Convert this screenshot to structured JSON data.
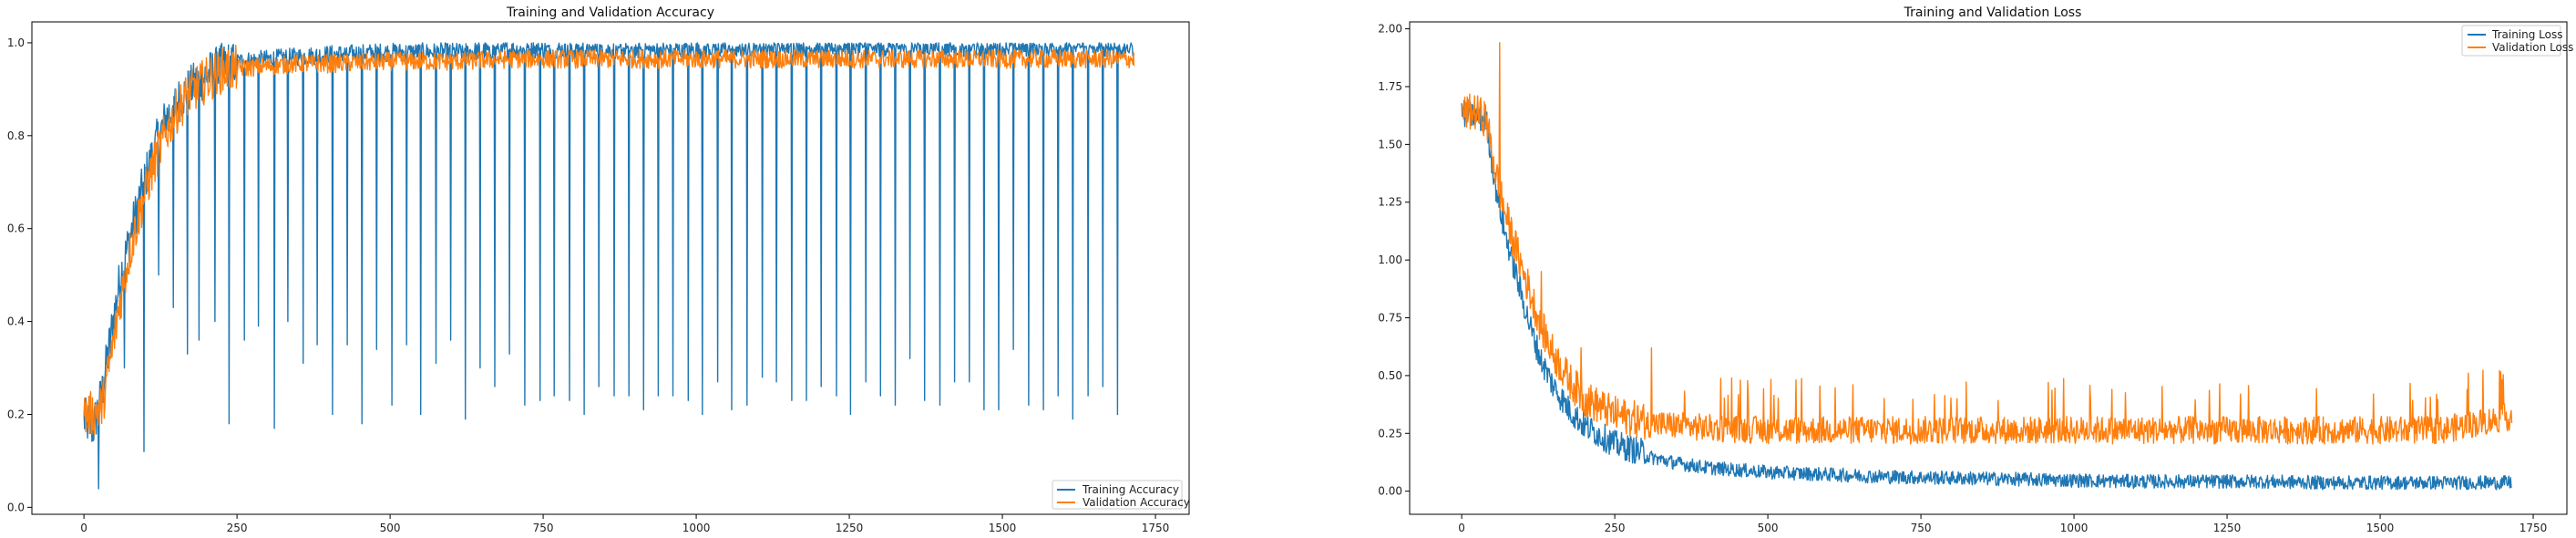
{
  "chart_data": [
    {
      "type": "line",
      "title": "Training and Validation Accuracy",
      "xlabel": "",
      "ylabel": "",
      "xlim": [
        -85,
        1805
      ],
      "ylim": [
        -0.015,
        1.045
      ],
      "xticks": [
        0,
        250,
        500,
        750,
        1000,
        1250,
        1500,
        1750
      ],
      "yticks": [
        0.0,
        0.2,
        0.4,
        0.6,
        0.8,
        1.0
      ],
      "legend_position": "lower-right",
      "grid": false,
      "series": [
        {
          "name": "Training Accuracy",
          "color": "#1f77b4",
          "x": [
            0,
            15,
            30,
            45,
            60,
            75,
            90,
            105,
            120,
            135,
            150,
            165,
            180,
            200,
            225,
            250,
            300,
            350,
            400,
            500,
            600,
            700,
            800,
            900,
            1000,
            1100,
            1200,
            1300,
            1400,
            1500,
            1600,
            1715
          ],
          "y": [
            0.19,
            0.17,
            0.25,
            0.38,
            0.5,
            0.58,
            0.66,
            0.73,
            0.79,
            0.84,
            0.87,
            0.89,
            0.91,
            0.93,
            0.95,
            0.96,
            0.965,
            0.97,
            0.975,
            0.98,
            0.98,
            0.985,
            0.985,
            0.985,
            0.985,
            0.99,
            0.99,
            0.99,
            0.99,
            0.99,
            0.99,
            0.99
          ],
          "dips_x": [
            24,
            43,
            66,
            98,
            122,
            146,
            169,
            188,
            214,
            237,
            262,
            285,
            311,
            333,
            358,
            381,
            406,
            430,
            454,
            478,
            503,
            527,
            550,
            575,
            599,
            623,
            647,
            671,
            695,
            720,
            745,
            768,
            793,
            817,
            841,
            866,
            890,
            914,
            938,
            962,
            987,
            1010,
            1035,
            1058,
            1083,
            1108,
            1131,
            1156,
            1180,
            1204,
            1229,
            1252,
            1277,
            1301,
            1325,
            1349,
            1373,
            1398,
            1422,
            1446,
            1470,
            1494,
            1518,
            1543,
            1567,
            1591,
            1615,
            1640,
            1664,
            1688
          ],
          "dips_y": [
            0.04,
            0.33,
            0.3,
            0.12,
            0.5,
            0.43,
            0.33,
            0.36,
            0.4,
            0.18,
            0.36,
            0.39,
            0.17,
            0.4,
            0.31,
            0.35,
            0.2,
            0.35,
            0.18,
            0.34,
            0.22,
            0.35,
            0.2,
            0.31,
            0.36,
            0.19,
            0.3,
            0.26,
            0.33,
            0.22,
            0.23,
            0.24,
            0.23,
            0.2,
            0.26,
            0.24,
            0.24,
            0.21,
            0.24,
            0.24,
            0.23,
            0.2,
            0.27,
            0.21,
            0.22,
            0.28,
            0.27,
            0.23,
            0.23,
            0.26,
            0.24,
            0.2,
            0.27,
            0.24,
            0.22,
            0.32,
            0.23,
            0.22,
            0.27,
            0.27,
            0.21,
            0.21,
            0.34,
            0.22,
            0.21,
            0.24,
            0.19,
            0.24,
            0.26,
            0.2
          ]
        },
        {
          "name": "Validation Accuracy",
          "color": "#ff7f0e",
          "x": [
            0,
            15,
            30,
            45,
            60,
            75,
            90,
            105,
            120,
            135,
            150,
            165,
            180,
            200,
            225,
            250,
            300,
            350,
            400,
            500,
            600,
            700,
            800,
            900,
            1000,
            1100,
            1200,
            1300,
            1400,
            1500,
            1600,
            1715
          ],
          "y": [
            0.2,
            0.2,
            0.22,
            0.33,
            0.45,
            0.55,
            0.63,
            0.7,
            0.76,
            0.81,
            0.85,
            0.88,
            0.9,
            0.92,
            0.94,
            0.945,
            0.95,
            0.955,
            0.955,
            0.96,
            0.96,
            0.965,
            0.965,
            0.965,
            0.965,
            0.965,
            0.965,
            0.965,
            0.965,
            0.965,
            0.965,
            0.965
          ]
        }
      ]
    },
    {
      "type": "line",
      "title": "Training and Validation Loss",
      "xlabel": "",
      "ylabel": "",
      "xlim": [
        -85,
        1805
      ],
      "ylim": [
        -0.1,
        2.03
      ],
      "xticks": [
        0,
        250,
        500,
        750,
        1000,
        1250,
        1500,
        1750
      ],
      "yticks": [
        0.0,
        0.25,
        0.5,
        0.75,
        1.0,
        1.25,
        1.5,
        1.75,
        2.0
      ],
      "legend_position": "upper-right",
      "grid": false,
      "series": [
        {
          "name": "Training Loss",
          "color": "#1f77b4",
          "x": [
            0,
            20,
            40,
            55,
            70,
            85,
            100,
            115,
            130,
            150,
            175,
            200,
            250,
            300,
            350,
            400,
            500,
            600,
            700,
            800,
            900,
            1000,
            1100,
            1200,
            1300,
            1400,
            1500,
            1600,
            1715
          ],
          "y": [
            1.61,
            1.6,
            1.58,
            1.3,
            1.1,
            0.95,
            0.8,
            0.66,
            0.54,
            0.43,
            0.33,
            0.26,
            0.18,
            0.14,
            0.11,
            0.09,
            0.07,
            0.06,
            0.05,
            0.045,
            0.04,
            0.035,
            0.03,
            0.03,
            0.03,
            0.025,
            0.025,
            0.025,
            0.025
          ]
        },
        {
          "name": "Validation Loss",
          "color": "#ff7f0e",
          "x": [
            0,
            20,
            40,
            55,
            70,
            85,
            100,
            115,
            130,
            150,
            175,
            200,
            250,
            300,
            350,
            400,
            500,
            600,
            700,
            800,
            900,
            1000,
            1100,
            1200,
            1300,
            1400,
            1500,
            1600,
            1715
          ],
          "y": [
            1.6,
            1.61,
            1.58,
            1.35,
            1.18,
            1.05,
            0.92,
            0.8,
            0.68,
            0.56,
            0.45,
            0.37,
            0.3,
            0.27,
            0.26,
            0.25,
            0.24,
            0.24,
            0.24,
            0.24,
            0.24,
            0.24,
            0.24,
            0.24,
            0.24,
            0.24,
            0.24,
            0.24,
            0.3
          ],
          "spikes_x": [
            62,
            130,
            195,
            310,
            455
          ],
          "spikes_y": [
            1.94,
            0.95,
            0.62,
            0.62,
            0.48
          ]
        }
      ]
    }
  ]
}
